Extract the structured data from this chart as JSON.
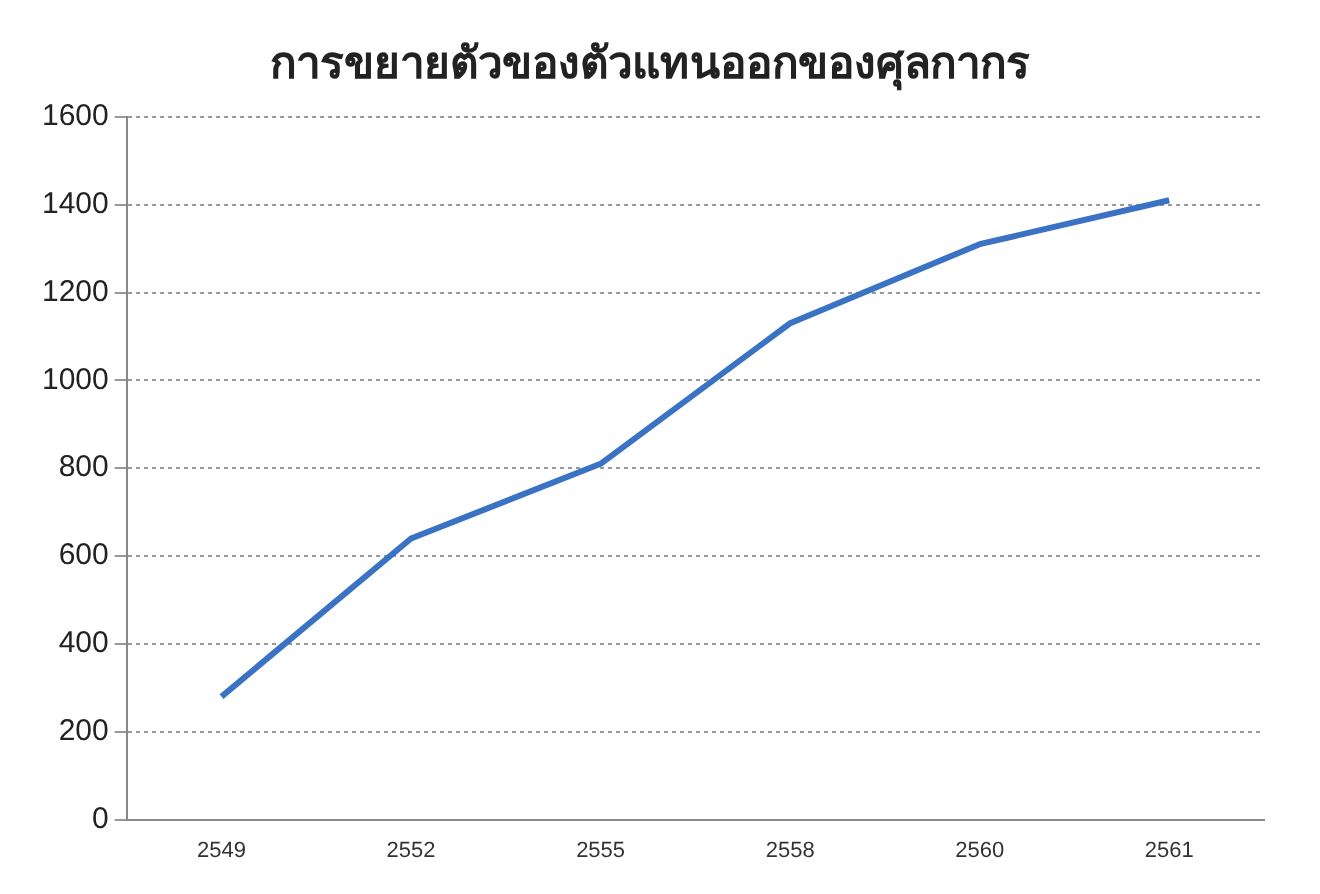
{
  "chart_data": {
    "type": "line",
    "title": "การขยายตัวของตัวแทนออกของศุลกากร",
    "categories": [
      "2549",
      "2552",
      "2555",
      "2558",
      "2560",
      "2561"
    ],
    "series": [
      {
        "color": "#3a72c4",
        "values": [
          280,
          640,
          810,
          1130,
          1310,
          1410
        ]
      }
    ],
    "ylim": [
      0,
      1600
    ],
    "yticks": [
      0,
      200,
      400,
      600,
      800,
      1000,
      1200,
      1400,
      1600
    ],
    "grid": "y",
    "legend": false,
    "marker": "none",
    "line_style": "solid"
  }
}
